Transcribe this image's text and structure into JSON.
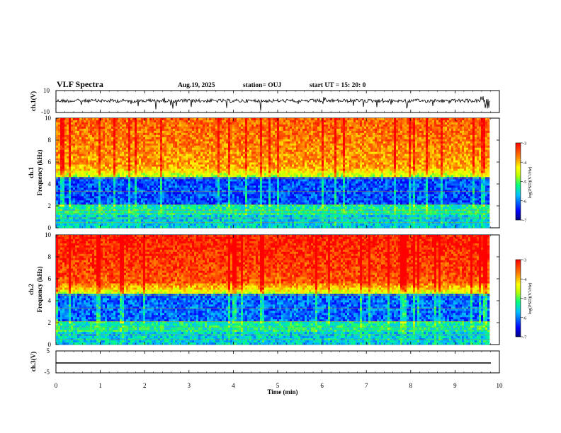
{
  "header": {
    "title": "VLF Spectra",
    "date": "Aug.19, 2025",
    "station": "station= OUJ",
    "start_ut": "start  UT =   15: 20: 0"
  },
  "chart_data": [
    {
      "type": "line",
      "panel": "ch1-waveform",
      "ylabel": "ch.1(V)",
      "ylim": [
        -10,
        10
      ],
      "yticks": [
        "10",
        "-10"
      ],
      "x_range_min": [
        0,
        10
      ],
      "description_of_series": "noisy waveform around ~0 V with impulsive spikes"
    },
    {
      "type": "heatmap",
      "panel": "ch1-spectrogram",
      "ylabel": "ch.1\nFrequency (kHz)",
      "ylim": [
        0,
        10
      ],
      "yticks": [
        "0",
        "2",
        "4",
        "6",
        "8",
        "10"
      ],
      "x_range_min": [
        0,
        9.8
      ],
      "colorbar": {
        "label": "log(PSD)(V²/Hz)",
        "range": [
          -7,
          -3
        ],
        "ticks": [
          "-3",
          "-4",
          "-5",
          "-6",
          "-7"
        ],
        "colormap": [
          "#00007f",
          "#0000ff",
          "#00bfff",
          "#00ff80",
          "#bfff00",
          "#ffff00",
          "#ff8000",
          "#ff0000"
        ]
      }
    },
    {
      "type": "heatmap",
      "panel": "ch2-spectrogram",
      "ylabel": "ch.2\nFrequency (kHz)",
      "ylim": [
        0,
        10
      ],
      "yticks": [
        "0",
        "2",
        "4",
        "6",
        "8",
        "10"
      ],
      "x_range_min": [
        0,
        9.8
      ],
      "colorbar": {
        "label": "log(PSD)(V²/Hz)",
        "range": [
          -7,
          -3
        ],
        "ticks": [
          "-3",
          "-4",
          "-5",
          "-6",
          "-7"
        ],
        "colormap": [
          "#00007f",
          "#0000ff",
          "#00bfff",
          "#00ff80",
          "#bfff00",
          "#ffff00",
          "#ff8000",
          "#ff0000"
        ]
      }
    },
    {
      "type": "line",
      "panel": "ch3-waveform",
      "ylabel": "ch.3(V)",
      "ylim": [
        -5,
        5
      ],
      "yticks": [
        "5",
        "-5"
      ],
      "x": [
        0,
        9.8
      ],
      "y": [
        -1.2,
        -1.2
      ]
    }
  ],
  "xaxis": {
    "label": "Time  (min)",
    "ticks": [
      "0",
      "1",
      "2",
      "3",
      "4",
      "5",
      "6",
      "7",
      "8",
      "9",
      "10"
    ],
    "range": [
      0,
      10
    ]
  }
}
